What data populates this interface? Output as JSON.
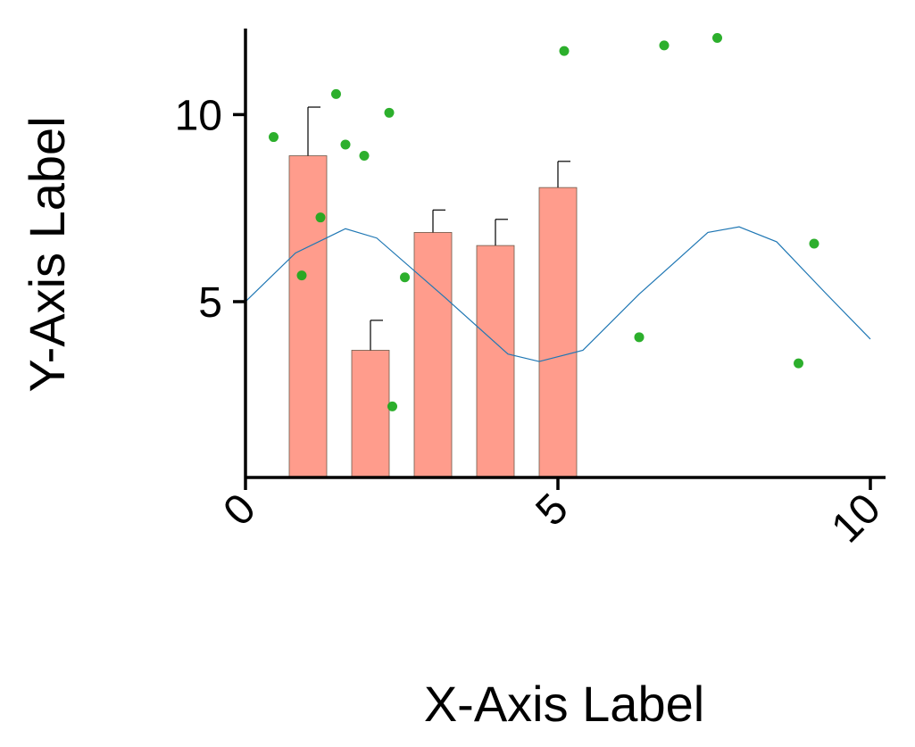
{
  "chart_data": {
    "type": "bar",
    "title": "",
    "xlabel": "X-Axis Label",
    "ylabel": "Y-Axis Label",
    "xlim": [
      0,
      10
    ],
    "ylim": [
      0.3,
      12.3
    ],
    "x_ticks": [
      "0",
      "5",
      "10"
    ],
    "y_ticks": [
      "5",
      "10"
    ],
    "grid": false,
    "colors": {
      "bars": "#ff9c8c",
      "scatter": "#1aa81a",
      "line": "#1f77b4",
      "axis": "#000000"
    },
    "bars": [
      {
        "x": 1.0,
        "value": 8.9,
        "error": 1.3
      },
      {
        "x": 2.0,
        "value": 3.7,
        "error": 0.8
      },
      {
        "x": 3.0,
        "value": 6.85,
        "error": 0.6
      },
      {
        "x": 4.0,
        "value": 6.5,
        "error": 0.7
      },
      {
        "x": 5.0,
        "value": 8.05,
        "error": 0.7
      }
    ],
    "line": {
      "x": [
        0,
        0.8,
        1.6,
        2.1,
        3.2,
        4.2,
        4.7,
        5.4,
        6.3,
        7.4,
        7.9,
        8.5,
        9.3,
        10
      ],
      "y": [
        5.0,
        6.3,
        6.95,
        6.7,
        5.1,
        3.6,
        3.4,
        3.7,
        5.2,
        6.85,
        7.0,
        6.6,
        5.2,
        4.0
      ]
    },
    "scatter": {
      "x": [
        0.45,
        0.9,
        1.2,
        1.45,
        1.6,
        1.9,
        2.3,
        2.35,
        2.55,
        5.1,
        6.3,
        6.7,
        7.55,
        8.85,
        9.1
      ],
      "y": [
        9.4,
        5.7,
        7.25,
        10.55,
        9.2,
        8.9,
        10.05,
        2.2,
        5.65,
        11.7,
        4.05,
        11.85,
        12.05,
        3.35,
        6.55
      ]
    }
  }
}
